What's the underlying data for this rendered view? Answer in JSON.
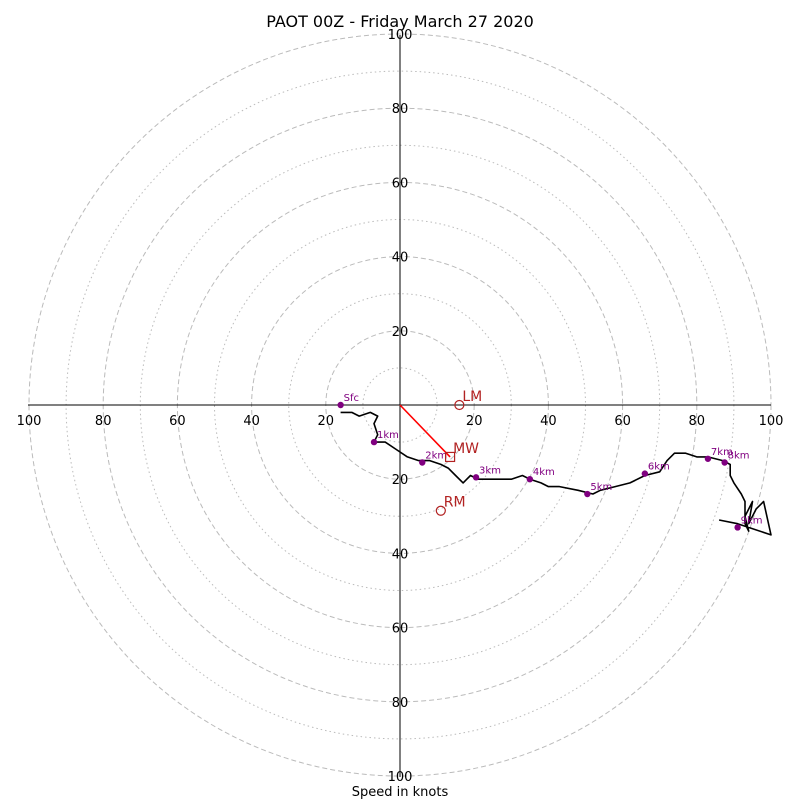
{
  "chart_data": {
    "type": "hodograph",
    "title": "PAOT 00Z - Friday March 27 2020",
    "xlabel": "Speed in knots",
    "range": [
      -100,
      100
    ],
    "ring_major": [
      20,
      40,
      60,
      80,
      100
    ],
    "ring_minor": [
      10,
      30,
      50,
      70,
      90
    ],
    "tick_values": [
      20,
      40,
      60,
      80,
      100
    ],
    "tick_labels": [
      "20",
      "40",
      "60",
      "80",
      "100"
    ],
    "x_tick_labels_neg": [
      "100",
      "80",
      "60",
      "40",
      "20"
    ],
    "colors": {
      "trace": "#000000",
      "height": "#800080",
      "motion": "#b22222",
      "mean_wind_vector": "#ff0000",
      "rings": "#bbbbbb"
    },
    "trace": [
      [
        -16,
        -2
      ],
      [
        -13,
        -2
      ],
      [
        -11,
        -3
      ],
      [
        -8,
        -2
      ],
      [
        -6,
        -3
      ],
      [
        -7,
        -5
      ],
      [
        -6,
        -8
      ],
      [
        -7,
        -10
      ],
      [
        -4,
        -10
      ],
      [
        -1,
        -12
      ],
      [
        2,
        -14
      ],
      [
        5,
        -15
      ],
      [
        8,
        -15
      ],
      [
        11,
        -16
      ],
      [
        13,
        -17
      ],
      [
        15,
        -19
      ],
      [
        17,
        -21
      ],
      [
        18,
        -20
      ],
      [
        19,
        -19
      ],
      [
        21,
        -20
      ],
      [
        24,
        -20
      ],
      [
        27,
        -20
      ],
      [
        30,
        -20
      ],
      [
        33,
        -19
      ],
      [
        35,
        -20
      ],
      [
        38,
        -21
      ],
      [
        40,
        -22
      ],
      [
        43,
        -22
      ],
      [
        48,
        -23
      ],
      [
        52,
        -24
      ],
      [
        54,
        -23
      ],
      [
        58,
        -22
      ],
      [
        62,
        -21
      ],
      [
        66,
        -19
      ],
      [
        70,
        -18
      ],
      [
        72,
        -15
      ],
      [
        74,
        -13
      ],
      [
        77,
        -13
      ],
      [
        80,
        -14
      ],
      [
        83,
        -14
      ],
      [
        87,
        -15
      ],
      [
        89,
        -16
      ],
      [
        89,
        -19
      ],
      [
        90,
        -21
      ],
      [
        92,
        -24
      ],
      [
        93,
        -26
      ],
      [
        93,
        -30
      ],
      [
        93,
        -32
      ],
      [
        94,
        -34
      ],
      [
        93,
        -30
      ],
      [
        95,
        -26
      ],
      [
        94,
        -32
      ],
      [
        96,
        -28
      ],
      [
        98,
        -26
      ],
      [
        100,
        -35
      ],
      [
        91,
        -32
      ],
      [
        86,
        -31
      ]
    ],
    "height_markers": [
      {
        "label": "Sfc",
        "u": -16,
        "v": 0
      },
      {
        "label": "1km",
        "u": -7,
        "v": -10
      },
      {
        "label": "2km",
        "u": 6,
        "v": -15.5
      },
      {
        "label": "3km",
        "u": 20.5,
        "v": -19.5
      },
      {
        "label": "4km",
        "u": 35,
        "v": -20
      },
      {
        "label": "5km",
        "u": 50.5,
        "v": -24
      },
      {
        "label": "6km",
        "u": 66,
        "v": -18.5
      },
      {
        "label": "7km",
        "u": 83,
        "v": -14.5
      },
      {
        "label": "8km",
        "u": 87.5,
        "v": -15.5
      },
      {
        "label": "9km",
        "u": 91,
        "v": -33
      }
    ],
    "storm_motion": [
      {
        "label": "LM",
        "u": 16,
        "v": 0,
        "marker": "circle"
      },
      {
        "label": "MW",
        "u": 13.5,
        "v": -14,
        "marker": "square"
      },
      {
        "label": "RM",
        "u": 11,
        "v": -28.5,
        "marker": "circle"
      }
    ],
    "mean_wind_vector": {
      "u": 13.5,
      "v": -14
    }
  }
}
